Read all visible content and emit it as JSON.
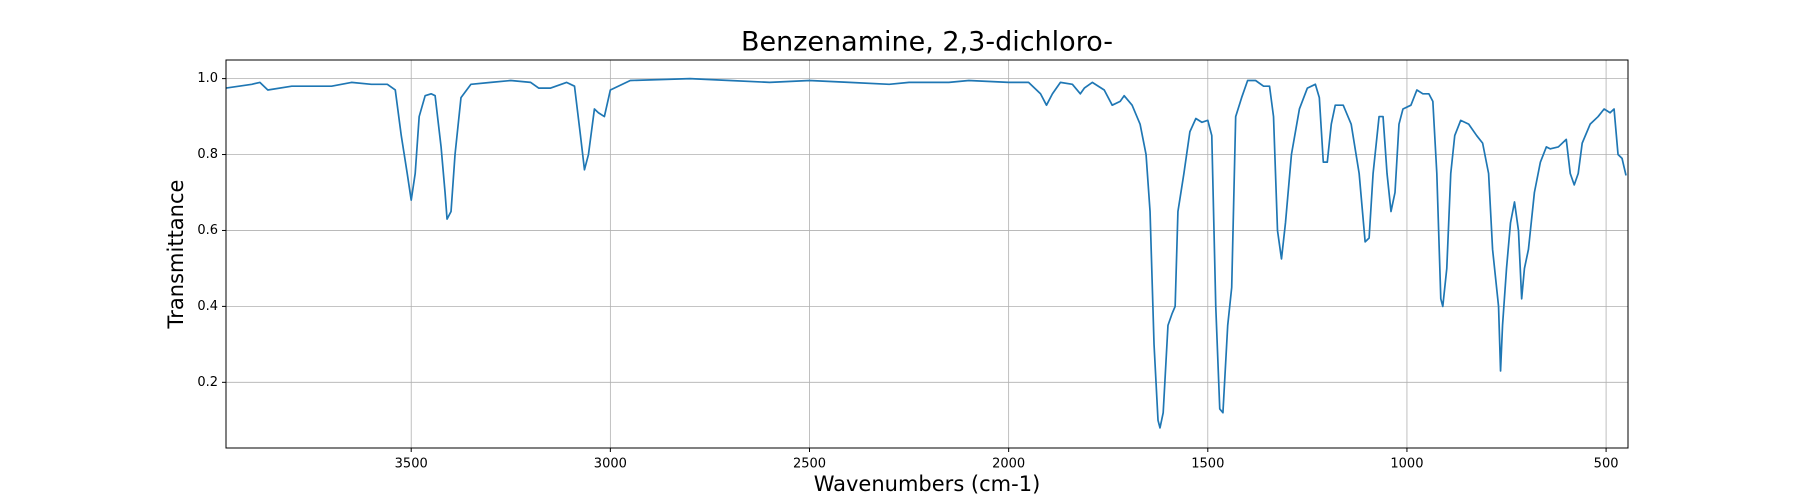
{
  "chart_data": {
    "type": "line",
    "title": "Benzenamine, 2,3-dichloro-",
    "x_label": "Wavenumbers (cm-1)",
    "y_label": "Transmittance",
    "color": "#1f77b4",
    "grid": true,
    "xlim": [
      3965,
      445
    ],
    "ylim": [
      0.027,
      1.049
    ],
    "xticks": [
      3500,
      3000,
      2500,
      2000,
      1500,
      1000,
      500
    ],
    "yticks": [
      0.2,
      0.4,
      0.6,
      0.8,
      {
        "value": 1,
        "label": "1.0"
      }
    ],
    "x": [
      3965,
      3900,
      3880,
      3860,
      3800,
      3700,
      3650,
      3600,
      3560,
      3540,
      3525,
      3510,
      3500,
      3490,
      3480,
      3465,
      3450,
      3440,
      3425,
      3415,
      3410,
      3400,
      3390,
      3375,
      3350,
      3300,
      3250,
      3200,
      3180,
      3150,
      3110,
      3090,
      3075,
      3065,
      3055,
      3040,
      3030,
      3015,
      3000,
      2950,
      2800,
      2700,
      2600,
      2500,
      2400,
      2300,
      2250,
      2150,
      2100,
      2000,
      1950,
      1920,
      1905,
      1890,
      1870,
      1840,
      1820,
      1810,
      1790,
      1760,
      1740,
      1720,
      1710,
      1690,
      1670,
      1655,
      1645,
      1635,
      1625,
      1620,
      1612,
      1600,
      1590,
      1582,
      1575,
      1560,
      1545,
      1530,
      1515,
      1500,
      1490,
      1480,
      1470,
      1462,
      1450,
      1440,
      1430,
      1415,
      1400,
      1380,
      1360,
      1345,
      1335,
      1325,
      1315,
      1305,
      1290,
      1270,
      1250,
      1230,
      1220,
      1210,
      1200,
      1190,
      1180,
      1160,
      1140,
      1120,
      1105,
      1095,
      1085,
      1070,
      1060,
      1050,
      1040,
      1030,
      1020,
      1010,
      990,
      975,
      960,
      945,
      935,
      925,
      915,
      910,
      900,
      890,
      880,
      865,
      845,
      825,
      810,
      795,
      785,
      770,
      765,
      760,
      750,
      740,
      730,
      720,
      712,
      705,
      695,
      680,
      665,
      650,
      640,
      620,
      600,
      590,
      580,
      570,
      560,
      540,
      520,
      505,
      490,
      480,
      470,
      460,
      450
    ],
    "values": [
      0.975,
      0.985,
      0.99,
      0.97,
      0.98,
      0.98,
      0.99,
      0.985,
      0.985,
      0.97,
      0.85,
      0.75,
      0.68,
      0.75,
      0.9,
      0.955,
      0.96,
      0.955,
      0.82,
      0.7,
      0.63,
      0.65,
      0.8,
      0.95,
      0.985,
      0.99,
      0.995,
      0.99,
      0.975,
      0.975,
      0.99,
      0.98,
      0.85,
      0.76,
      0.8,
      0.92,
      0.91,
      0.9,
      0.97,
      0.995,
      1.0,
      0.995,
      0.99,
      0.995,
      0.99,
      0.985,
      0.99,
      0.99,
      0.995,
      0.99,
      0.99,
      0.96,
      0.93,
      0.96,
      0.99,
      0.985,
      0.96,
      0.975,
      0.99,
      0.97,
      0.93,
      0.94,
      0.955,
      0.93,
      0.88,
      0.8,
      0.65,
      0.3,
      0.1,
      0.08,
      0.12,
      0.35,
      0.38,
      0.4,
      0.65,
      0.75,
      0.86,
      0.895,
      0.885,
      0.89,
      0.85,
      0.4,
      0.13,
      0.12,
      0.35,
      0.45,
      0.9,
      0.95,
      0.995,
      0.995,
      0.98,
      0.98,
      0.9,
      0.6,
      0.525,
      0.62,
      0.8,
      0.92,
      0.975,
      0.985,
      0.95,
      0.78,
      0.78,
      0.88,
      0.93,
      0.93,
      0.88,
      0.75,
      0.57,
      0.58,
      0.75,
      0.9,
      0.9,
      0.75,
      0.65,
      0.7,
      0.88,
      0.92,
      0.93,
      0.97,
      0.96,
      0.96,
      0.94,
      0.75,
      0.42,
      0.4,
      0.5,
      0.75,
      0.85,
      0.89,
      0.88,
      0.85,
      0.83,
      0.75,
      0.55,
      0.4,
      0.23,
      0.35,
      0.5,
      0.62,
      0.675,
      0.6,
      0.42,
      0.5,
      0.55,
      0.7,
      0.78,
      0.82,
      0.815,
      0.82,
      0.84,
      0.75,
      0.72,
      0.75,
      0.83,
      0.88,
      0.9,
      0.92,
      0.91,
      0.92,
      0.8,
      0.79,
      0.745
    ]
  }
}
